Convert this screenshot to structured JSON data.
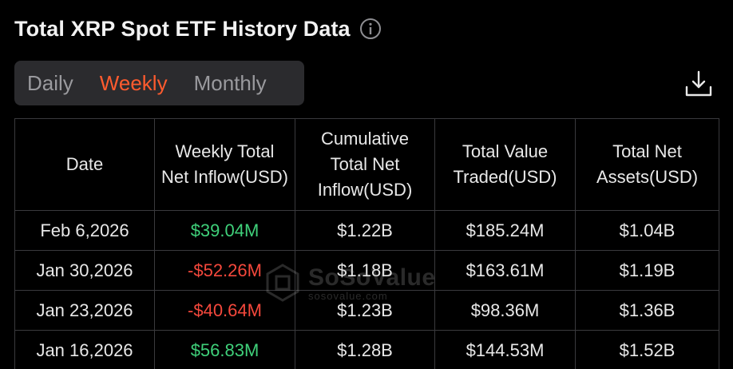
{
  "header": {
    "title": "Total XRP Spot ETF History Data",
    "info_icon": "info-circle-icon"
  },
  "tabs": [
    {
      "label": "Daily",
      "active": false
    },
    {
      "label": "Weekly",
      "active": true
    },
    {
      "label": "Monthly",
      "active": false
    }
  ],
  "download": {
    "icon": "download-icon"
  },
  "table": {
    "columns": [
      "Date",
      "Weekly Total Net Inflow(USD)",
      "Cumulative Total Net Inflow(USD)",
      "Total Value Traded(USD)",
      "Total Net Assets(USD)"
    ],
    "rows": [
      {
        "date": "Feb 6,2026",
        "weekly_net_inflow": "$39.04M",
        "cumulative_net_inflow": "$1.22B",
        "value_traded": "$185.24M",
        "net_assets": "$1.04B"
      },
      {
        "date": "Jan 30,2026",
        "weekly_net_inflow": "-$52.26M",
        "cumulative_net_inflow": "$1.18B",
        "value_traded": "$163.61M",
        "net_assets": "$1.19B"
      },
      {
        "date": "Jan 23,2026",
        "weekly_net_inflow": "-$40.64M",
        "cumulative_net_inflow": "$1.23B",
        "value_traded": "$98.36M",
        "net_assets": "$1.36B"
      },
      {
        "date": "Jan 16,2026",
        "weekly_net_inflow": "$56.83M",
        "cumulative_net_inflow": "$1.28B",
        "value_traded": "$144.53M",
        "net_assets": "$1.52B"
      }
    ]
  },
  "watermark": {
    "brand": "SoSoValue",
    "url": "sosovalue.com"
  },
  "colors": {
    "background": "#000000",
    "accent": "#ff5b2e",
    "positive": "#3fd07a",
    "negative": "#f5483c",
    "tab_bg": "#2b2b2e",
    "border": "#3a3a3d"
  }
}
